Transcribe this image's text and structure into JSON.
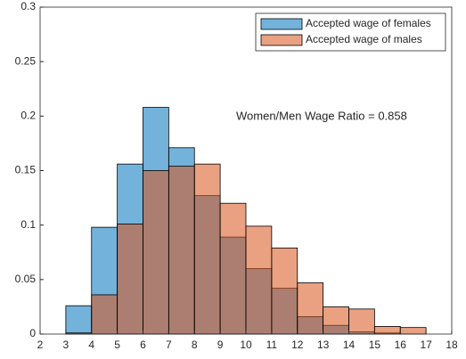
{
  "chart_data": {
    "type": "histogram",
    "annotation": "Women/Men Wage Ratio = 0.858",
    "bins": [
      3,
      4,
      5,
      6,
      7,
      8,
      9,
      10,
      11,
      12,
      13,
      14,
      15,
      16,
      17
    ],
    "series": [
      {
        "name": "Accepted wage of females",
        "color": "#0072bd",
        "values": [
          0.026,
          0.098,
          0.156,
          0.208,
          0.171,
          0.127,
          0.089,
          0.06,
          0.042,
          0.016,
          0.008,
          0.002,
          0.001,
          0
        ]
      },
      {
        "name": "Accepted wage of males",
        "color": "#d95319",
        "values": [
          0.001,
          0.036,
          0.101,
          0.15,
          0.154,
          0.156,
          0.12,
          0.099,
          0.079,
          0.047,
          0.025,
          0.023,
          0.007,
          0.006
        ]
      }
    ],
    "xlim": [
      2,
      18
    ],
    "xticks": [
      2,
      3,
      4,
      5,
      6,
      7,
      8,
      9,
      10,
      11,
      12,
      13,
      14,
      15,
      16,
      17,
      18
    ],
    "ylim": [
      0,
      0.3
    ],
    "yticks": [
      0,
      0.05,
      0.1,
      0.15,
      0.2,
      0.25,
      0.3
    ],
    "legend": "upper right"
  }
}
